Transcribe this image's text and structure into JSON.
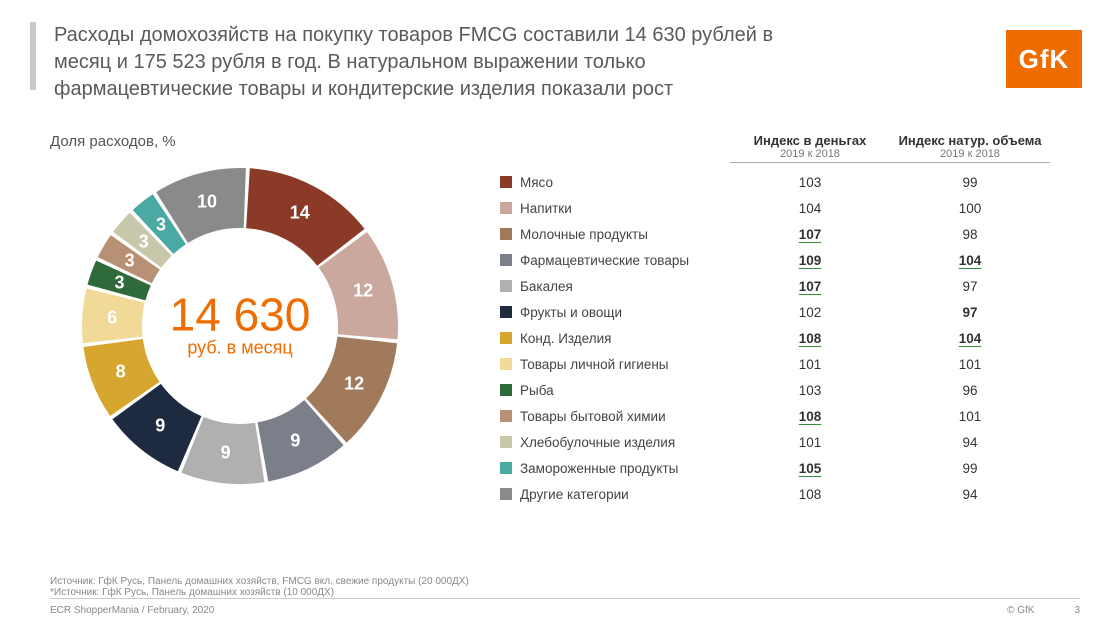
{
  "title": "Расходы домохозяйств на покупку товаров FMCG составили 14 630 рублей в месяц и 175 523 рубля в год. В натуральном выражении только фармацевтические товары и кондитерские изделия показали рост",
  "logo_text": "GfK",
  "logo_bg": "#ef6c00",
  "chart": {
    "title": "Доля расходов, %",
    "type": "donut",
    "center_value": "14 630",
    "center_sub": "руб. в месяц",
    "center_color": "#ef6c00",
    "inner_radius": 98,
    "outer_radius": 158,
    "label_radius": 128,
    "label_fontsize": 18,
    "label_color": "#ffffff",
    "background": "#ffffff",
    "segments": [
      {
        "label": "14",
        "value": 14,
        "color": "#8a3a26"
      },
      {
        "label": "12",
        "value": 12,
        "color": "#caa89e"
      },
      {
        "label": "12",
        "value": 12,
        "color": "#a07a5a"
      },
      {
        "label": "9",
        "value": 9,
        "color": "#7a7f8a"
      },
      {
        "label": "9",
        "value": 9,
        "color": "#b0b0b0"
      },
      {
        "label": "9",
        "value": 9,
        "color": "#1e2a3f"
      },
      {
        "label": "8",
        "value": 8,
        "color": "#d6a62f"
      },
      {
        "label": "6",
        "value": 6,
        "color": "#f1d997"
      },
      {
        "label": "3",
        "value": 3,
        "color": "#2e6a3a"
      },
      {
        "label": "3",
        "value": 3,
        "color": "#b89074"
      },
      {
        "label": "3",
        "value": 3,
        "color": "#c9c7aa"
      },
      {
        "label": "3",
        "value": 3,
        "color": "#4aa9a3"
      },
      {
        "label": "10",
        "value": 10,
        "color": "#8a8a8a"
      }
    ]
  },
  "table": {
    "col2_title": "Индекс в деньгах",
    "col2_sub": "2019 к 2018",
    "col3_title": "Индекс натур. объема",
    "col3_sub": "2019 к 2018",
    "rows": [
      {
        "swatch": "#8a3a26",
        "name": "Мясо",
        "v1": "103",
        "v2": "99"
      },
      {
        "swatch": "#caa89e",
        "name": "Напитки",
        "v1": "104",
        "v2": "100"
      },
      {
        "swatch": "#a07a5a",
        "name": "Молочные продукты",
        "v1": "107",
        "v1_ul": true,
        "v2": "98"
      },
      {
        "swatch": "#7a7f8a",
        "name": "Фармацевтические товары",
        "v1": "109",
        "v1_ul": true,
        "v2": "104",
        "v2_ul": true
      },
      {
        "swatch": "#b0b0b0",
        "name": "Бакалея",
        "v1": "107",
        "v1_ul": true,
        "v2": "97"
      },
      {
        "swatch": "#1e2a3f",
        "name": "Фрукты и овощи",
        "v1": "102",
        "v2": "97",
        "v2_bold": true
      },
      {
        "swatch": "#d6a62f",
        "name": "Конд. Изделия",
        "v1": "108",
        "v1_ul": true,
        "v2": "104",
        "v2_ul": true
      },
      {
        "swatch": "#f1d997",
        "name": "Товары личной гигиены",
        "v1": "101",
        "v2": "101"
      },
      {
        "swatch": "#2e6a3a",
        "name": "Рыба",
        "v1": "103",
        "v2": "96"
      },
      {
        "swatch": "#b89074",
        "name": "Товары бытовой химии",
        "v1": "108",
        "v1_ul": true,
        "v2": "101"
      },
      {
        "swatch": "#c9c7aa",
        "name": "Хлебобулочные изделия",
        "v1": "101",
        "v2": "94"
      },
      {
        "swatch": "#4aa9a3",
        "name": "Замороженные продукты",
        "v1": "105",
        "v1_ul": true,
        "v2": "99"
      },
      {
        "swatch": "#8a8a8a",
        "name": "Другие категории",
        "v1": "108",
        "v2": "94"
      }
    ]
  },
  "footer": {
    "source1": "Источник: ГфК Русь, Панель домашних хозяйств, FMCG вкл. свежие продукты (20 000ДХ)",
    "source2": "*Источник: ГфК Русь, Панель домашних хозяйств (10 000ДХ)",
    "left": "ECR ShopperMania / February, 2020",
    "copyright": "© GfK",
    "page": "3"
  }
}
